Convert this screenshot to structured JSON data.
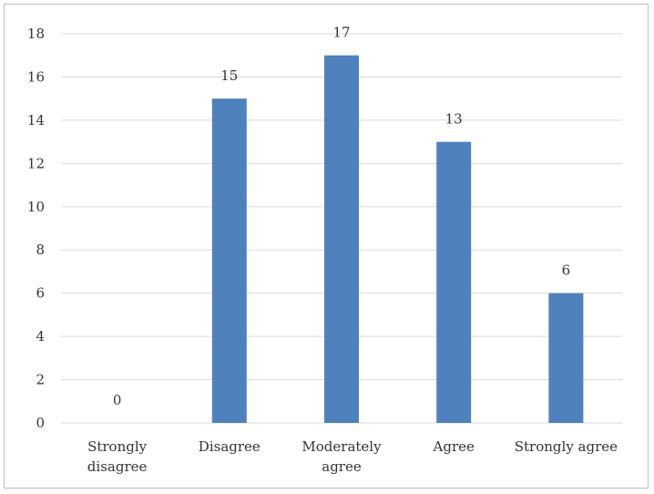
{
  "chart_data": {
    "type": "bar",
    "categories": [
      "Strongly disagree",
      "Disagree",
      "Moderately agree",
      "Agree",
      "Strongly agree"
    ],
    "category_lines": [
      [
        "Strongly",
        "disagree"
      ],
      [
        "Disagree"
      ],
      [
        "Moderately",
        "agree"
      ],
      [
        "Agree"
      ],
      [
        "Strongly agree"
      ]
    ],
    "values": [
      0,
      15,
      17,
      13,
      6
    ],
    "data_labels": [
      "0",
      "15",
      "17",
      "13",
      "6"
    ],
    "ylim": [
      0,
      18
    ],
    "yticks": [
      0,
      2,
      4,
      6,
      8,
      10,
      12,
      14,
      16,
      18
    ],
    "grid": true,
    "legend": "none",
    "bar_color": "#4f81bd",
    "grid_color": "#d9d9d9",
    "title": "",
    "xlabel": "",
    "ylabel": ""
  }
}
